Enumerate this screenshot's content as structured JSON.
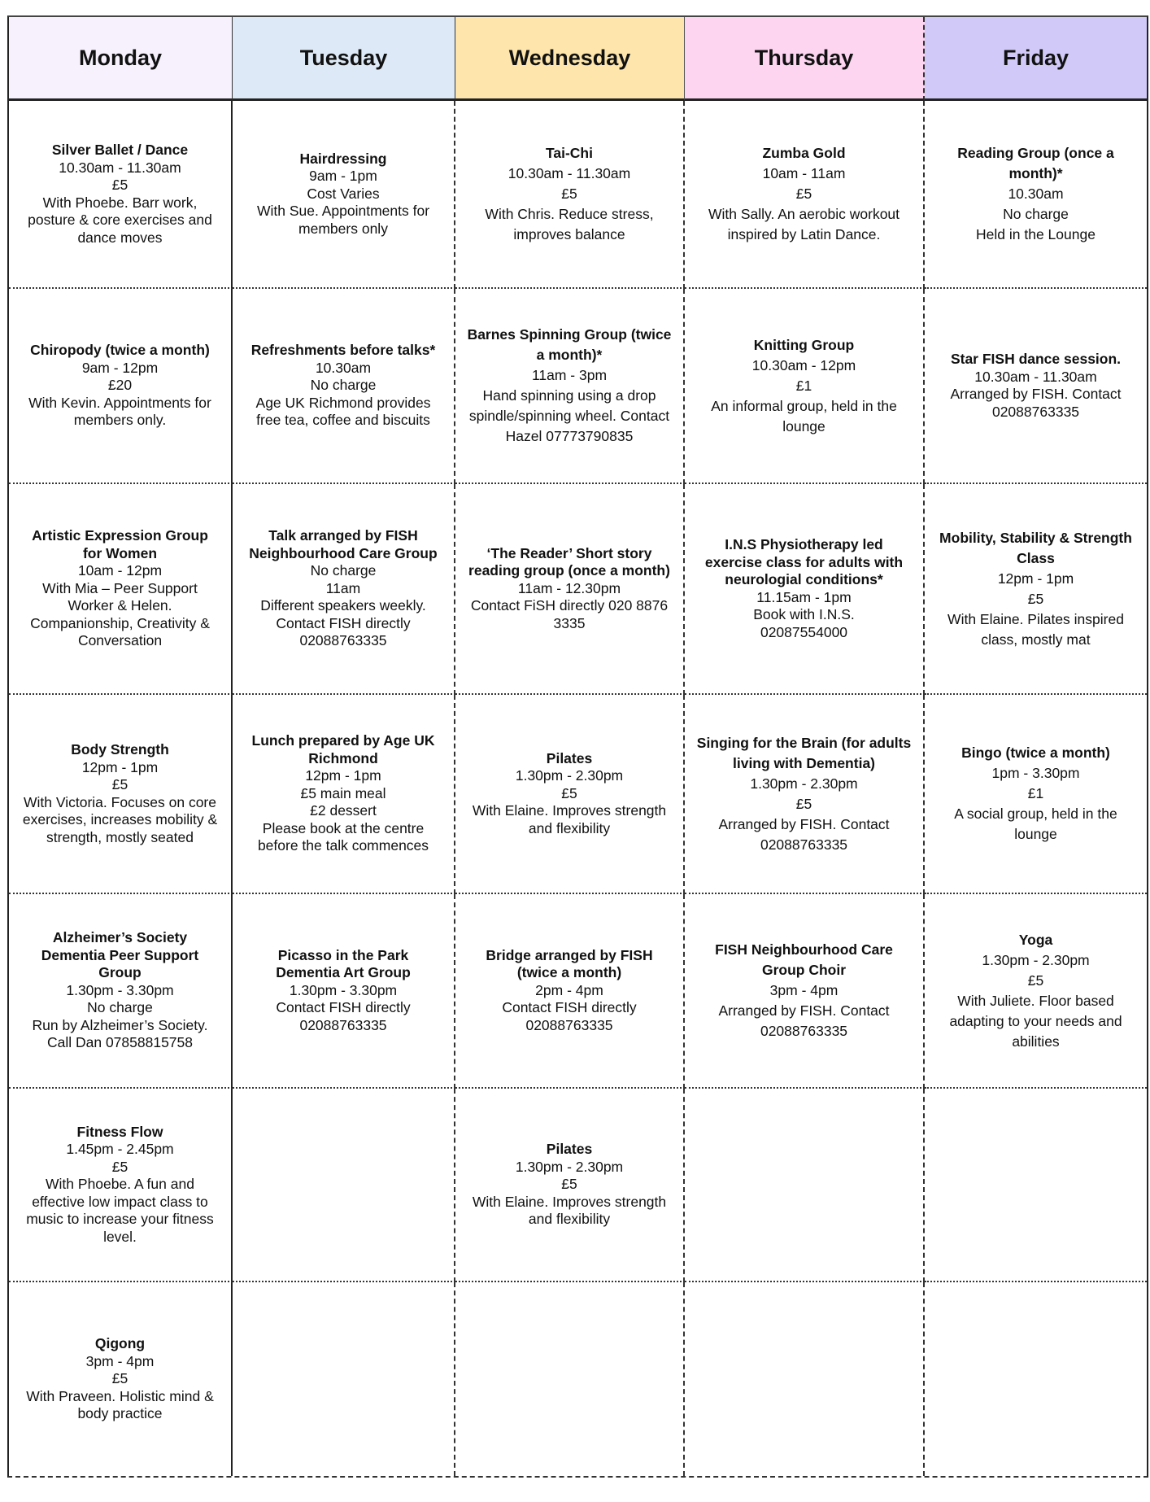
{
  "days": [
    {
      "label": "Monday",
      "color": "#f6f1fd"
    },
    {
      "label": "Tuesday",
      "color": "#dde9f6"
    },
    {
      "label": "Wednesday",
      "color": "#fde5ab"
    },
    {
      "label": "Thursday",
      "color": "#fdd5f1"
    },
    {
      "label": "Friday",
      "color": "#d1caf9"
    }
  ],
  "rows": [
    [
      {
        "title": "Silver Ballet / Dance",
        "lines": [
          "10.30am - 11.30am",
          "£5",
          "With Phoebe. Barr work, posture & core exercises and dance moves"
        ]
      },
      {
        "title": "Hairdressing",
        "lines": [
          "9am - 1pm",
          "Cost Varies",
          "With Sue. Appointments for members only"
        ]
      },
      {
        "title": "Tai-Chi",
        "lines": [
          "10.30am - 11.30am",
          "£5",
          "With Chris. Reduce stress, improves balance"
        ],
        "loose": true
      },
      {
        "title": "Zumba Gold",
        "lines": [
          "10am - 11am",
          "£5",
          "With Sally. An aerobic workout inspired by Latin Dance."
        ],
        "loose": true
      },
      {
        "title": "Reading Group (once a month)*",
        "lines": [
          "10.30am",
          "No charge",
          "Held in the Lounge"
        ],
        "loose": true
      }
    ],
    [
      {
        "title": "Chiropody (twice a month)",
        "lines": [
          "9am - 12pm",
          "£20",
          "With Kevin. Appointments for members only."
        ]
      },
      {
        "title": "Refreshments before talks*",
        "lines": [
          "10.30am",
          "No charge",
          "Age UK Richmond provides free tea, coffee and biscuits"
        ]
      },
      {
        "title": "Barnes Spinning Group (twice a month)*",
        "lines": [
          "11am - 3pm",
          "Hand spinning using a drop spindle/spinning wheel. Contact Hazel 07773790835"
        ],
        "loose": true
      },
      {
        "title": "Knitting Group",
        "lines": [
          "10.30am - 12pm",
          "£1",
          "An informal group, held in the lounge"
        ],
        "loose": true
      },
      {
        "title": "Star FISH dance session.",
        "lines": [
          "10.30am - 11.30am",
          "Arranged by FISH. Contact 02088763335"
        ]
      }
    ],
    [
      {
        "title": "Artistic Expression Group for Women",
        "lines": [
          "10am - 12pm",
          "With Mia – Peer Support Worker & Helen. Companionship, Creativity & Conversation"
        ]
      },
      {
        "title": "Talk arranged by FISH Neighbourhood Care Group",
        "lines": [
          "No charge",
          "11am",
          "Different speakers weekly. Contact FISH directly 02088763335"
        ]
      },
      {
        "title": "‘The Reader’ Short story reading group (once a month)",
        "lines": [
          "11am - 12.30pm",
          "Contact FiSH directly 020 8876 3335"
        ]
      },
      {
        "title": "I.N.S Physiotherapy led exercise class for adults with neurologial conditions*",
        "lines": [
          "11.15am - 1pm",
          "Book with I.N.S.",
          "02087554000"
        ]
      },
      {
        "title": "Mobility, Stability & Strength Class",
        "lines": [
          "12pm - 1pm",
          "£5",
          "With Elaine. Pilates inspired class, mostly mat"
        ],
        "loose": true
      }
    ],
    [
      {
        "title": "Body Strength",
        "lines": [
          "12pm - 1pm",
          "£5",
          "With Victoria. Focuses on core exercises, increases mobility & strength, mostly seated"
        ]
      },
      {
        "title": "Lunch prepared by Age UK Richmond",
        "lines": [
          "12pm - 1pm",
          "£5 main meal",
          "£2 dessert",
          "Please book at the centre before the talk commences"
        ]
      },
      {
        "title": "Pilates",
        "lines": [
          "1.30pm - 2.30pm",
          "£5",
          "With Elaine. Improves strength and flexibility"
        ]
      },
      {
        "title": "Singing for the Brain (for adults living with Dementia)",
        "lines": [
          "1.30pm - 2.30pm",
          "£5",
          "Arranged by FISH. Contact 02088763335"
        ],
        "loose": true
      },
      {
        "title": "Bingo (twice a month)",
        "lines": [
          "1pm - 3.30pm",
          "£1",
          "A social group, held in the lounge"
        ],
        "loose": true
      }
    ],
    [
      {
        "title": "Alzheimer’s Society Dementia Peer Support Group",
        "lines": [
          "1.30pm - 3.30pm",
          "No charge",
          "Run by Alzheimer’s Society. Call Dan 07858815758"
        ]
      },
      {
        "title": "Picasso in the Park Dementia Art Group",
        "lines": [
          "1.30pm - 3.30pm",
          "Contact FISH directly",
          "02088763335"
        ]
      },
      {
        "title": "Bridge arranged by FISH (twice a month)",
        "lines": [
          "2pm - 4pm",
          "Contact FISH directly 02088763335"
        ]
      },
      {
        "title": "FISH Neighbourhood Care Group Choir",
        "lines": [
          "3pm - 4pm",
          "Arranged by FISH. Contact 02088763335"
        ],
        "loose": true
      },
      {
        "title": "Yoga",
        "lines": [
          "1.30pm - 2.30pm",
          "£5",
          "With Juliete. Floor based adapting to your needs and abilities"
        ],
        "loose": true
      }
    ],
    [
      {
        "title": "Fitness Flow",
        "lines": [
          "1.45pm - 2.45pm",
          "£5",
          "With Phoebe. A fun and effective low impact class to music to increase your fitness level."
        ]
      },
      null,
      {
        "title": "Pilates",
        "lines": [
          "1.30pm - 2.30pm",
          "£5",
          "With Elaine. Improves strength and flexibility"
        ]
      },
      null,
      null
    ],
    [
      {
        "title": "Qigong",
        "lines": [
          "3pm - 4pm",
          "£5",
          "With Praveen. Holistic mind & body practice"
        ]
      },
      null,
      null,
      null,
      null
    ]
  ]
}
